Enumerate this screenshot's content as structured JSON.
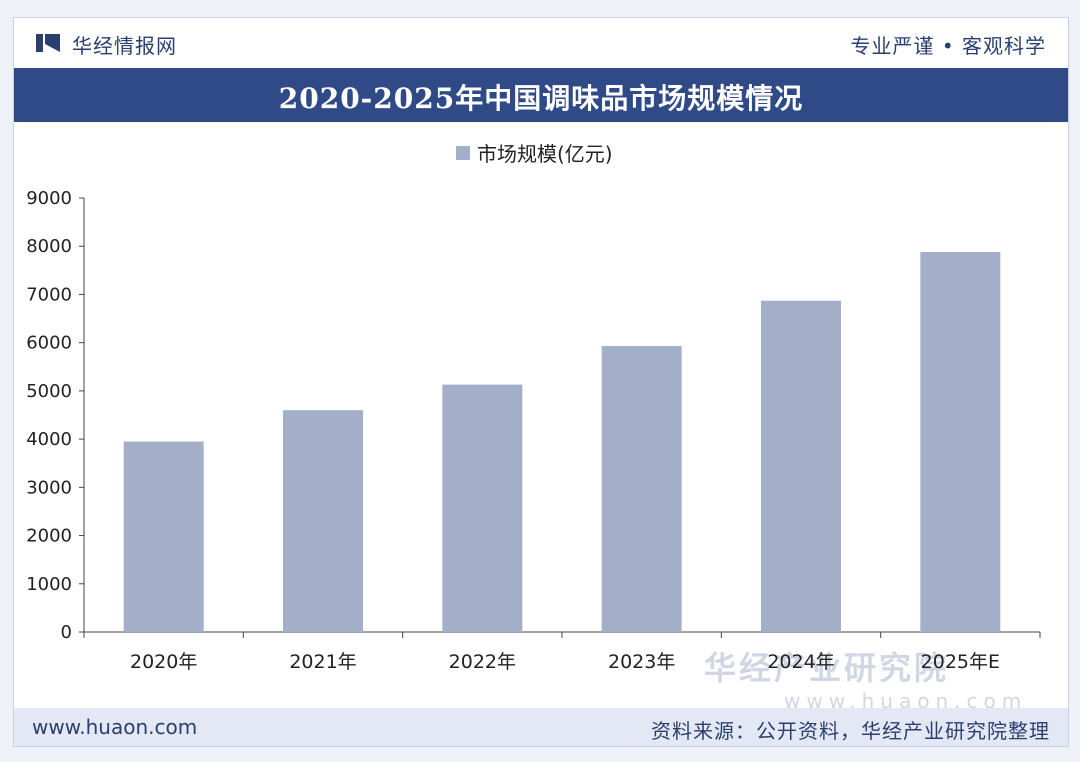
{
  "header": {
    "brand": "华经情报网",
    "slogan": "专业严谨 • 客观科学"
  },
  "title": "2020-2025年中国调味品市场规模情况",
  "footer": {
    "website": "www.huaon.com",
    "source": "资料来源：公开资料，华经产业研究院整理"
  },
  "watermark": {
    "text": "华经产业研究院",
    "url": "www.huaon.com"
  },
  "colors": {
    "bar": "#a3afc9",
    "title_bar": "#2f4a87",
    "text": "#2b3f6e"
  },
  "chart_data": {
    "type": "bar",
    "title": "2020-2025年中国调味品市场规模情况",
    "categories": [
      "2020年",
      "2021年",
      "2022年",
      "2023年",
      "2024年",
      "2025年E"
    ],
    "series": [
      {
        "name": "市场规模(亿元)",
        "values": [
          3950,
          4600,
          5130,
          5930,
          6870,
          7880
        ]
      }
    ],
    "ylim": [
      0,
      9000
    ],
    "yticks": [
      0,
      1000,
      2000,
      3000,
      4000,
      5000,
      6000,
      7000,
      8000,
      9000
    ],
    "xlabel": "",
    "ylabel": "",
    "legend": "top-center",
    "grid": false
  }
}
